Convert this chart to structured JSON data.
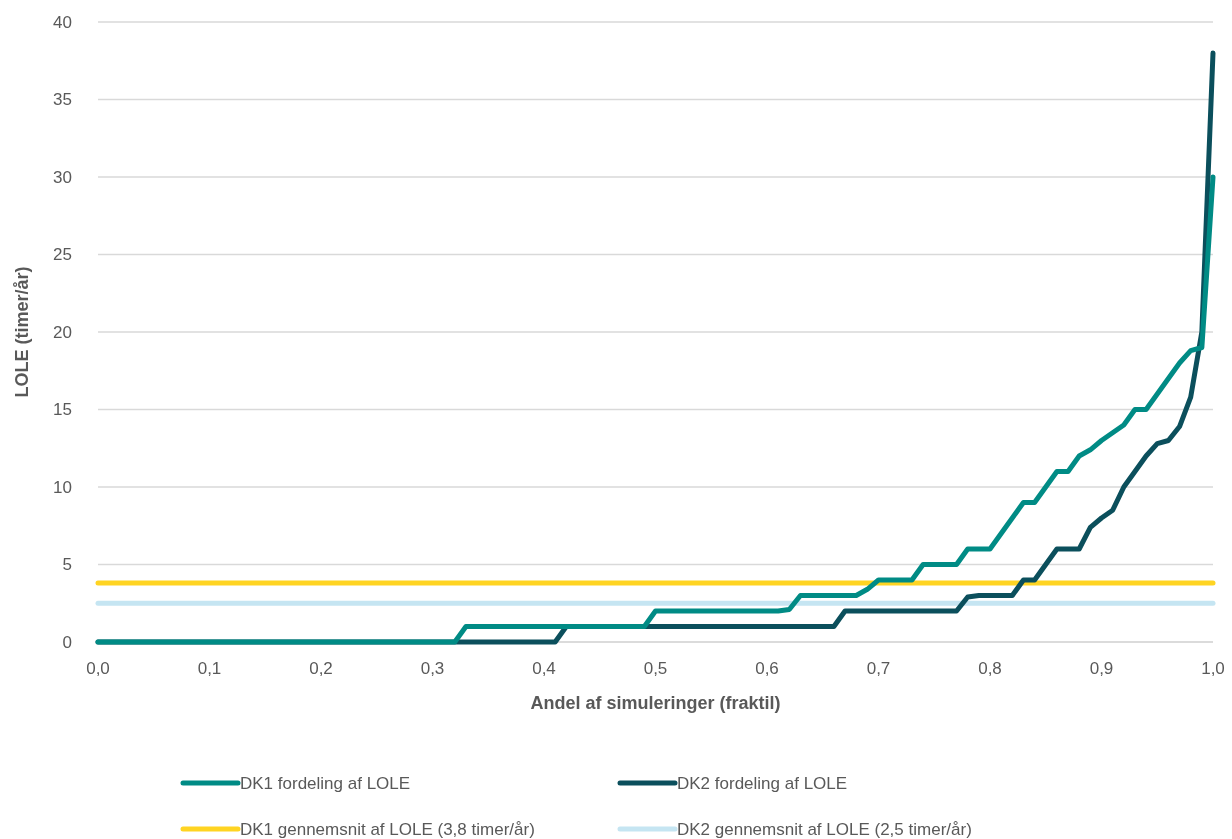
{
  "chart_data": {
    "type": "line",
    "xlabel": "Andel af simuleringer (fraktil)",
    "ylabel": "LOLE (timer/år)",
    "xlim": [
      0,
      1
    ],
    "xticks": [
      {
        "value": 0,
        "label": "0,0"
      },
      {
        "value": 0.1,
        "label": "0,1"
      },
      {
        "value": 0.2,
        "label": "0,2"
      },
      {
        "value": 0.3,
        "label": "0,3"
      },
      {
        "value": 0.4,
        "label": "0,4"
      },
      {
        "value": 0.5,
        "label": "0,5"
      },
      {
        "value": 0.6,
        "label": "0,6"
      },
      {
        "value": 0.7,
        "label": "0,7"
      },
      {
        "value": 0.8,
        "label": "0,8"
      },
      {
        "value": 0.9,
        "label": "0,9"
      },
      {
        "value": 1,
        "label": "1,0"
      }
    ],
    "ylim": [
      0,
      40
    ],
    "yticks": [
      0,
      5,
      10,
      15,
      20,
      25,
      30,
      35,
      40
    ],
    "grid": "y",
    "legend": "bottom",
    "marker": "none",
    "line_style": "solid",
    "series": [
      {
        "name": "DK1 fordeling af LOLE",
        "color": "#008b85",
        "x": [
          0,
          0.32,
          0.33,
          0.49,
          0.5,
          0.61,
          0.62,
          0.63,
          0.67,
          0.68,
          0.69,
          0.7,
          0.73,
          0.74,
          0.77,
          0.78,
          0.79,
          0.8,
          0.81,
          0.82,
          0.83,
          0.84,
          0.85,
          0.86,
          0.87,
          0.88,
          0.89,
          0.9,
          0.91,
          0.92,
          0.93,
          0.94,
          0.95,
          0.96,
          0.97,
          0.98,
          0.99,
          1.0
        ],
        "values": [
          0,
          0,
          1,
          1,
          2,
          2,
          2.1,
          3,
          3,
          3,
          3.4,
          4,
          4,
          5,
          5,
          6,
          6,
          6,
          7,
          8,
          9,
          9,
          10,
          11,
          11,
          12,
          12.4,
          13,
          13.5,
          14,
          15,
          15,
          16,
          17,
          18,
          18.8,
          19,
          30
        ]
      },
      {
        "name": "DK2 fordeling af LOLE",
        "color": "#0b4f5c",
        "x": [
          0,
          0.41,
          0.42,
          0.66,
          0.67,
          0.77,
          0.78,
          0.79,
          0.82,
          0.83,
          0.84,
          0.85,
          0.86,
          0.88,
          0.89,
          0.9,
          0.91,
          0.92,
          0.93,
          0.94,
          0.95,
          0.96,
          0.97,
          0.98,
          0.99,
          1.0
        ],
        "values": [
          0,
          0,
          1,
          1,
          2,
          2,
          2.9,
          3,
          3,
          4,
          4,
          5,
          6,
          6,
          7.4,
          8,
          8.5,
          10,
          11,
          12,
          12.8,
          13,
          13.9,
          15.8,
          20,
          38
        ]
      },
      {
        "name": "DK1 gennemsnit af LOLE (3,8 timer/år)",
        "color": "#ffd422",
        "x": [
          0,
          1
        ],
        "values": [
          3.8,
          3.8
        ]
      },
      {
        "name": "DK2 gennemsnit af LOLE (2,5 timer/år)",
        "color": "#c5e5f2",
        "x": [
          0,
          1
        ],
        "values": [
          2.5,
          2.5
        ]
      }
    ]
  }
}
